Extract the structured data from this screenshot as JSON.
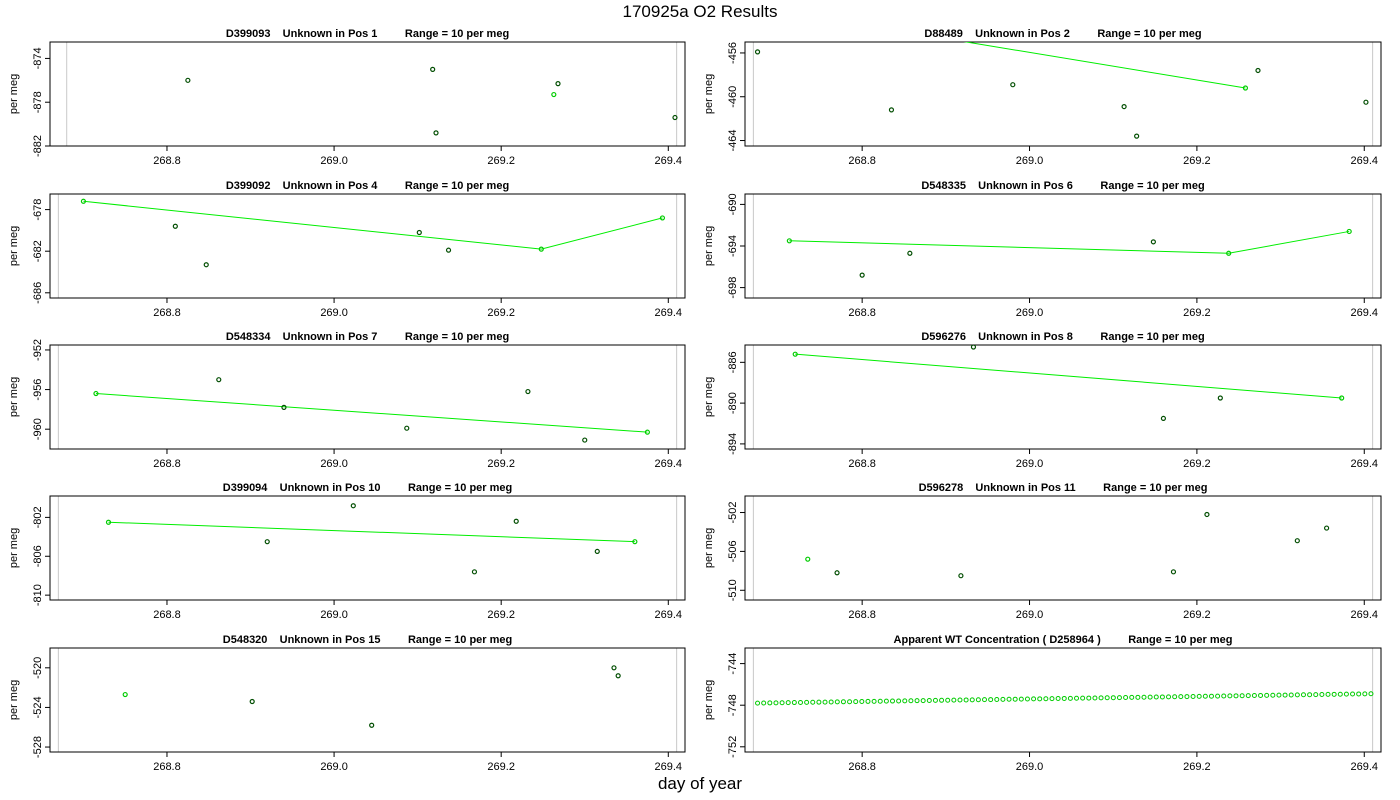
{
  "title": "170925a  O2 Results",
  "xlabel": "day of year",
  "colors": {
    "point_dark": "#004d00",
    "point_light": "#00cc00",
    "fit_line": "#00ee00",
    "vline": "#c8c8c8",
    "axis": "#000000"
  },
  "chart_data": [
    {
      "type": "scatter",
      "title": "D399093    Unknown in Pos 1         Range = 10 per meg",
      "ylabel": "per meg",
      "xlim": [
        268.66,
        269.42
      ],
      "ylim": [
        -882,
        -872.5
      ],
      "xticks": [
        "268.8",
        "269.0",
        "269.2",
        "269.4"
      ],
      "yticks": [
        "-874",
        "-878",
        "-882"
      ],
      "vlines": [
        268.68,
        269.41
      ],
      "points": [
        {
          "x": 268.825,
          "y": -876.0,
          "style": "dark"
        },
        {
          "x": 269.118,
          "y": -875.0,
          "style": "dark"
        },
        {
          "x": 269.122,
          "y": -880.8,
          "style": "dark"
        },
        {
          "x": 269.263,
          "y": -877.3,
          "style": "light"
        },
        {
          "x": 269.268,
          "y": -876.3,
          "style": "dark"
        },
        {
          "x": 269.408,
          "y": -879.4,
          "style": "dark"
        }
      ],
      "fit_line": []
    },
    {
      "type": "scatter",
      "title": "D88489    Unknown in Pos 2         Range = 10 per meg",
      "ylabel": "per meg",
      "xlim": [
        268.66,
        269.42
      ],
      "ylim": [
        -464.5,
        -455
      ],
      "xticks": [
        "268.8",
        "269.0",
        "269.2",
        "269.4"
      ],
      "yticks": [
        "-456",
        "-460",
        "-464"
      ],
      "vlines": [
        268.67,
        269.41
      ],
      "points": [
        {
          "x": 268.675,
          "y": -455.9,
          "style": "dark"
        },
        {
          "x": 268.835,
          "y": -461.2,
          "style": "dark"
        },
        {
          "x": 268.98,
          "y": -458.9,
          "style": "dark"
        },
        {
          "x": 269.113,
          "y": -460.9,
          "style": "dark"
        },
        {
          "x": 269.128,
          "y": -463.6,
          "style": "dark"
        },
        {
          "x": 269.258,
          "y": -459.2,
          "style": "light"
        },
        {
          "x": 269.273,
          "y": -457.6,
          "style": "dark"
        },
        {
          "x": 269.402,
          "y": -460.5,
          "style": "dark"
        }
      ],
      "fit_line": [
        [
          268.885,
          -454.5
        ],
        [
          269.258,
          -459.2
        ]
      ]
    },
    {
      "type": "scatter",
      "title": "D399092    Unknown in Pos 4         Range = 10 per meg",
      "ylabel": "per meg",
      "xlim": [
        268.66,
        269.42
      ],
      "ylim": [
        -686.5,
        -676.5
      ],
      "xticks": [
        "268.8",
        "269.0",
        "269.2",
        "269.4"
      ],
      "yticks": [
        "-678",
        "-682",
        "-686"
      ],
      "vlines": [
        268.67,
        269.41
      ],
      "points": [
        {
          "x": 268.7,
          "y": -677.2,
          "style": "light"
        },
        {
          "x": 268.81,
          "y": -679.6,
          "style": "dark"
        },
        {
          "x": 268.847,
          "y": -683.3,
          "style": "dark"
        },
        {
          "x": 269.102,
          "y": -680.2,
          "style": "dark"
        },
        {
          "x": 269.137,
          "y": -681.9,
          "style": "dark"
        },
        {
          "x": 269.248,
          "y": -681.8,
          "style": "light"
        },
        {
          "x": 269.393,
          "y": -678.8,
          "style": "light"
        }
      ],
      "fit_line": [
        [
          268.7,
          -677.2
        ],
        [
          269.248,
          -681.8
        ],
        [
          269.393,
          -678.8
        ]
      ]
    },
    {
      "type": "scatter",
      "title": "D548335    Unknown in Pos 6         Range = 10 per meg",
      "ylabel": "per meg",
      "xlim": [
        268.66,
        269.42
      ],
      "ylim": [
        -699,
        -689
      ],
      "xticks": [
        "268.8",
        "269.0",
        "269.2",
        "269.4"
      ],
      "yticks": [
        "-690",
        "-694",
        "-698"
      ],
      "vlines": [
        268.67,
        269.41
      ],
      "points": [
        {
          "x": 268.713,
          "y": -693.5,
          "style": "light"
        },
        {
          "x": 268.8,
          "y": -696.8,
          "style": "dark"
        },
        {
          "x": 268.857,
          "y": -694.7,
          "style": "dark"
        },
        {
          "x": 269.148,
          "y": -693.6,
          "style": "dark"
        },
        {
          "x": 269.238,
          "y": -694.7,
          "style": "light"
        },
        {
          "x": 269.382,
          "y": -692.6,
          "style": "light"
        }
      ],
      "fit_line": [
        [
          268.713,
          -693.5
        ],
        [
          269.238,
          -694.7
        ],
        [
          269.382,
          -692.6
        ]
      ]
    },
    {
      "type": "scatter",
      "title": "D548334    Unknown in Pos 7         Range = 10 per meg",
      "ylabel": "per meg",
      "xlim": [
        268.66,
        269.42
      ],
      "ylim": [
        -962,
        -951.5
      ],
      "xticks": [
        "268.8",
        "269.0",
        "269.2",
        "269.4"
      ],
      "yticks": [
        "-952",
        "-956",
        "-960"
      ],
      "vlines": [
        268.67,
        269.41
      ],
      "points": [
        {
          "x": 268.715,
          "y": -956.4,
          "style": "light"
        },
        {
          "x": 268.862,
          "y": -955.0,
          "style": "dark"
        },
        {
          "x": 268.94,
          "y": -957.8,
          "style": "dark"
        },
        {
          "x": 269.087,
          "y": -959.9,
          "style": "dark"
        },
        {
          "x": 269.232,
          "y": -956.2,
          "style": "dark"
        },
        {
          "x": 269.3,
          "y": -961.1,
          "style": "dark"
        },
        {
          "x": 269.375,
          "y": -960.3,
          "style": "light"
        }
      ],
      "fit_line": [
        [
          268.715,
          -956.4
        ],
        [
          269.375,
          -960.3
        ]
      ]
    },
    {
      "type": "scatter",
      "title": "D596276    Unknown in Pos 8         Range = 10 per meg",
      "ylabel": "per meg",
      "xlim": [
        268.66,
        269.42
      ],
      "ylim": [
        -894.5,
        -884.3
      ],
      "xticks": [
        "268.8",
        "269.0",
        "269.2",
        "269.4"
      ],
      "yticks": [
        "-886",
        "-890",
        "-894"
      ],
      "vlines": [
        268.67,
        269.41
      ],
      "points": [
        {
          "x": 268.72,
          "y": -885.2,
          "style": "light"
        },
        {
          "x": 268.933,
          "y": -884.5,
          "style": "dark"
        },
        {
          "x": 269.16,
          "y": -891.5,
          "style": "dark"
        },
        {
          "x": 269.228,
          "y": -889.5,
          "style": "dark"
        },
        {
          "x": 269.373,
          "y": -889.5,
          "style": "light"
        }
      ],
      "fit_line": [
        [
          268.72,
          -885.2
        ],
        [
          269.373,
          -889.5
        ]
      ]
    },
    {
      "type": "scatter",
      "title": "D399094    Unknown in Pos 10         Range = 10 per meg",
      "ylabel": "per meg",
      "xlim": [
        268.66,
        269.42
      ],
      "ylim": [
        -810.5,
        -799.8
      ],
      "xticks": [
        "268.8",
        "269.0",
        "269.2",
        "269.4"
      ],
      "yticks": [
        "-802",
        "-806",
        "-810"
      ],
      "vlines": [
        268.67,
        269.41
      ],
      "points": [
        {
          "x": 268.73,
          "y": -802.5,
          "style": "light"
        },
        {
          "x": 268.92,
          "y": -804.5,
          "style": "dark"
        },
        {
          "x": 269.023,
          "y": -800.8,
          "style": "dark"
        },
        {
          "x": 269.168,
          "y": -807.6,
          "style": "dark"
        },
        {
          "x": 269.218,
          "y": -802.4,
          "style": "dark"
        },
        {
          "x": 269.315,
          "y": -805.5,
          "style": "dark"
        },
        {
          "x": 269.36,
          "y": -804.5,
          "style": "light"
        }
      ],
      "fit_line": [
        [
          268.73,
          -802.5
        ],
        [
          269.36,
          -804.5
        ]
      ]
    },
    {
      "type": "scatter",
      "title": "D596278    Unknown in Pos 11         Range = 10 per meg",
      "ylabel": "per meg",
      "xlim": [
        268.66,
        269.42
      ],
      "ylim": [
        -511,
        -500.3
      ],
      "xticks": [
        "268.8",
        "269.0",
        "269.2",
        "269.4"
      ],
      "yticks": [
        "-502",
        "-506",
        "-510"
      ],
      "vlines": [
        268.67,
        269.41
      ],
      "points": [
        {
          "x": 268.735,
          "y": -506.8,
          "style": "light"
        },
        {
          "x": 268.77,
          "y": -508.2,
          "style": "dark"
        },
        {
          "x": 268.918,
          "y": -508.5,
          "style": "dark"
        },
        {
          "x": 269.172,
          "y": -508.1,
          "style": "dark"
        },
        {
          "x": 269.212,
          "y": -502.2,
          "style": "dark"
        },
        {
          "x": 269.32,
          "y": -504.9,
          "style": "dark"
        },
        {
          "x": 269.355,
          "y": -503.6,
          "style": "dark"
        }
      ],
      "fit_line": []
    },
    {
      "type": "scatter",
      "title": "D548320    Unknown in Pos 15         Range = 10 per meg",
      "ylabel": "per meg",
      "xlim": [
        268.66,
        269.42
      ],
      "ylim": [
        -528.5,
        -518
      ],
      "xticks": [
        "268.8",
        "269.0",
        "269.2",
        "269.4"
      ],
      "yticks": [
        "-520",
        "-524",
        "-528"
      ],
      "vlines": [
        268.67,
        269.41
      ],
      "points": [
        {
          "x": 268.75,
          "y": -522.7,
          "style": "light"
        },
        {
          "x": 268.902,
          "y": -523.4,
          "style": "dark"
        },
        {
          "x": 269.045,
          "y": -525.8,
          "style": "dark"
        },
        {
          "x": 269.335,
          "y": -520.0,
          "style": "dark"
        },
        {
          "x": 269.34,
          "y": -520.8,
          "style": "dark"
        }
      ],
      "fit_line": []
    },
    {
      "type": "scatter",
      "title": "Apparent WT Concentration ( D258964 )         Range = 10 per meg",
      "ylabel": "per meg",
      "xlim": [
        268.66,
        269.42
      ],
      "ylim": [
        -752.5,
        -742.5
      ],
      "xticks": [
        "268.8",
        "269.0",
        "269.2",
        "269.4"
      ],
      "yticks": [
        "-744",
        "-748",
        "-752"
      ],
      "vlines": [
        268.67,
        269.41
      ],
      "series_range": {
        "x_start": 268.675,
        "x_end": 269.408,
        "y_start": -747.8,
        "y_end": -746.9,
        "count": 101,
        "style": "light"
      },
      "points": [],
      "fit_line": []
    }
  ]
}
